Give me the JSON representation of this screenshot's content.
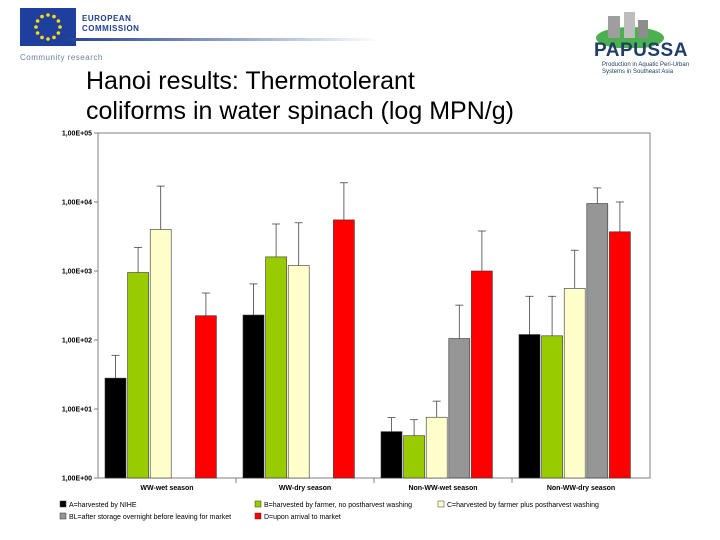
{
  "header": {
    "eu_name_line1": "EUROPEAN",
    "eu_name_line2": "COMMISSION",
    "eu_tagline": "Community research",
    "papussa_name": "PAPUSSA",
    "papussa_subtitle": "Production in Aquatic Peri-Urban Systems in Southeast Asia"
  },
  "slide_title": "Hanoi results: Thermotolerant\ncoliforms in water spinach (log MPN/g)",
  "colors": {
    "A": "#000000",
    "B": "#99cc00",
    "C": "#ffffcc",
    "BL": "#969696",
    "D": "#ff0000",
    "plot_bg": "#ffffff",
    "title": "#000000"
  },
  "chart_data": {
    "type": "bar",
    "title": "",
    "xlabel": "",
    "ylabel": "",
    "y_scale": "log",
    "ylim": [
      1,
      100000
    ],
    "grid": false,
    "legend_position": "bottom",
    "y_ticks": [
      {
        "value": 1,
        "label": "1,00E+00"
      },
      {
        "value": 10,
        "label": "1,00E+01"
      },
      {
        "value": 100,
        "label": "1,00E+02"
      },
      {
        "value": 1000,
        "label": "1,00E+03"
      },
      {
        "value": 10000,
        "label": "1,00E+04"
      },
      {
        "value": 100000,
        "label": "1,00E+05"
      }
    ],
    "categories": [
      "WW-wet season",
      "WW-dry season",
      "Non-WW-wet season",
      "Non-WW-dry season"
    ],
    "series": [
      {
        "key": "A",
        "name": "A=harvested by NIHE",
        "values": [
          28,
          230,
          4.7,
          120
        ],
        "error_upper": [
          60,
          650,
          7.5,
          430
        ]
      },
      {
        "key": "B",
        "name": "B=harvested by farmer, no postharvest washing",
        "values": [
          950,
          1600,
          4.1,
          115
        ],
        "error_upper": [
          2200,
          4800,
          7.0,
          430
        ]
      },
      {
        "key": "C",
        "name": "C=harvested by farmer plus postharvest washing",
        "values": [
          4000,
          1200,
          7.6,
          560
        ],
        "error_upper": [
          17000,
          5000,
          13,
          2000
        ]
      },
      {
        "key": "BL",
        "name": "BL=after storage overnight before leaving for market",
        "values": [
          null,
          null,
          105,
          9500
        ],
        "error_upper": [
          null,
          null,
          320,
          16000
        ]
      },
      {
        "key": "D",
        "name": "D=upon arrival to market",
        "values": [
          225,
          5500,
          1000,
          3700
        ],
        "error_upper": [
          480,
          19000,
          3800,
          10000
        ]
      }
    ]
  }
}
